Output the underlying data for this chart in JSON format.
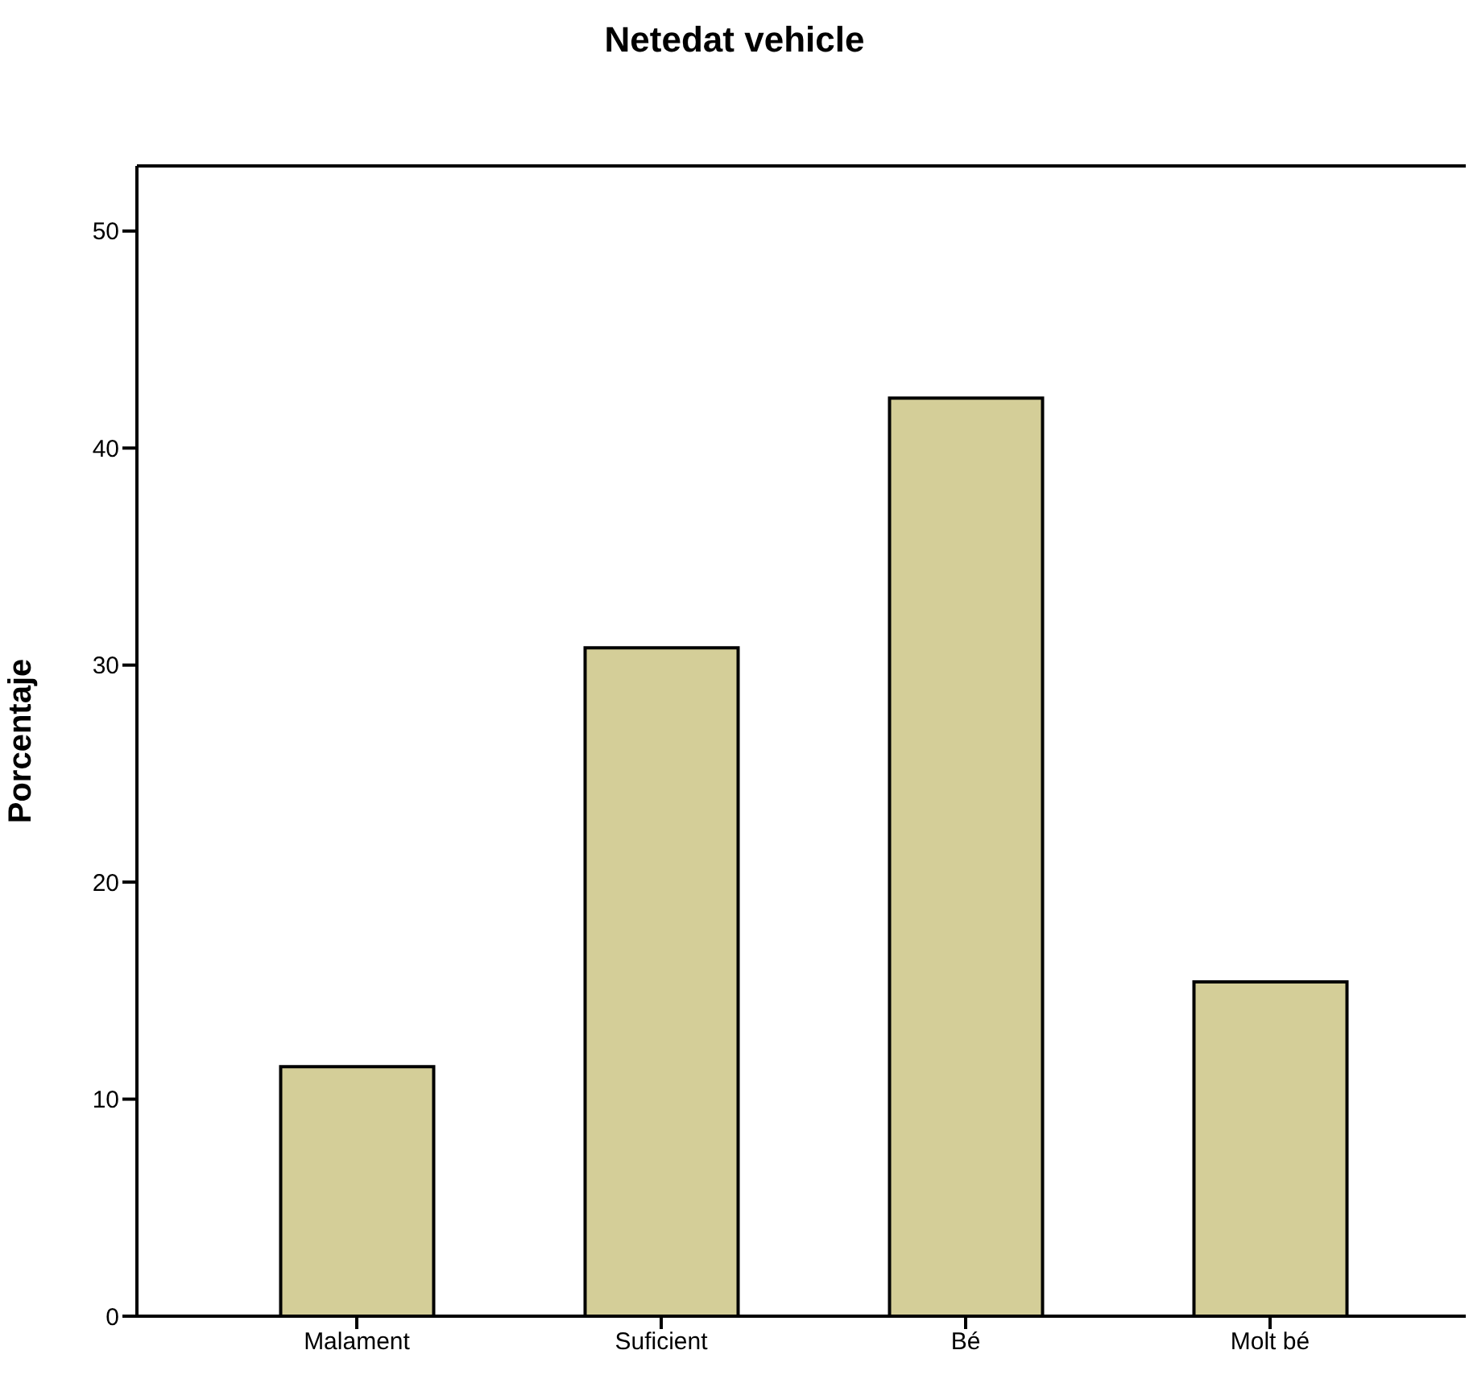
{
  "chart_data": {
    "type": "bar",
    "title": "Netedat vehicle",
    "ylabel": "Porcentaje",
    "categories": [
      "Malament",
      "Suficient",
      "Bé",
      "Molt bé"
    ],
    "values": [
      11.5,
      30.8,
      42.3,
      15.4
    ],
    "color": "#d4ce98",
    "ylim": [
      0,
      53
    ],
    "yticks": [
      0,
      10,
      20,
      30,
      40,
      50
    ]
  }
}
